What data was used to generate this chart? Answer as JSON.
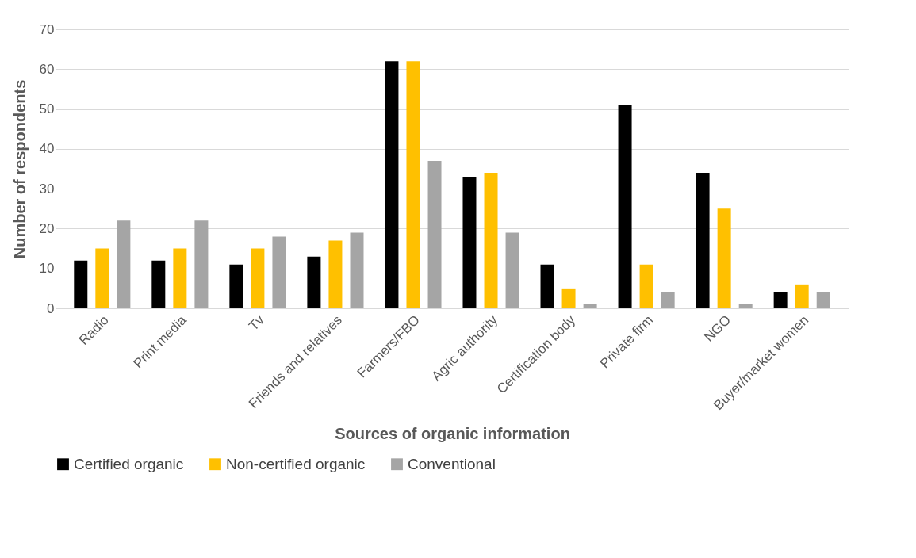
{
  "chart_data": {
    "type": "bar",
    "xlabel": "Sources of organic information",
    "ylabel": "Number of respondents",
    "categories": [
      "Radio",
      "Print media",
      "Tv",
      "Friends and relatives",
      "Farmers/FBO",
      "Agric authority",
      "Certification body",
      "Private firm",
      "NGO",
      "Buyer/market women"
    ],
    "series": [
      {
        "name": "Certified organic",
        "color": "#000000",
        "values": [
          12,
          12,
          11,
          13,
          62,
          33,
          11,
          51,
          34,
          4
        ]
      },
      {
        "name": "Non-certified organic",
        "color": "#ffc000",
        "values": [
          15,
          15,
          15,
          17,
          62,
          34,
          5,
          11,
          25,
          6
        ]
      },
      {
        "name": "Conventional",
        "color": "#a5a5a5",
        "values": [
          22,
          22,
          18,
          19,
          37,
          19,
          1,
          4,
          1,
          4
        ]
      }
    ],
    "ylim": [
      0,
      70
    ],
    "yticks": [
      0,
      10,
      20,
      30,
      40,
      50,
      60,
      70
    ],
    "grid": "y",
    "legend": "bottom"
  }
}
